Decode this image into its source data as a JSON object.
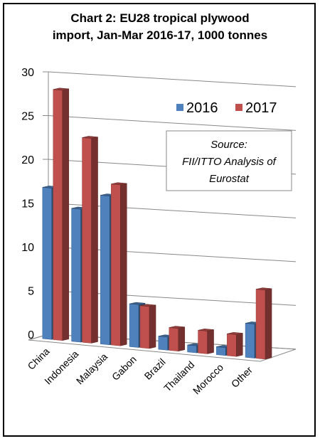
{
  "chart_data": {
    "type": "bar",
    "title_line1": "Chart 2: EU28 tropical plywood",
    "title_line2": "import, Jan-Mar 2016-17, 1000 tonnes",
    "categories": [
      "China",
      "Indonesia",
      "Malaysia",
      "Gabon",
      "Brazil",
      "Thailand",
      "Morocco",
      "Other"
    ],
    "series": [
      {
        "name": "2016",
        "values": [
          17.3,
          15.2,
          17.0,
          4.9,
          1.5,
          0.8,
          0.9,
          3.9
        ],
        "color": "#4F81BD"
      },
      {
        "name": "2017",
        "values": [
          28.6,
          23.4,
          18.4,
          4.8,
          2.6,
          2.6,
          2.5,
          7.9
        ],
        "color": "#C0504D"
      }
    ],
    "ylim": [
      0,
      30
    ],
    "yticks": [
      "0",
      "5",
      "10",
      "15",
      "20",
      "25",
      "30"
    ],
    "grid": true,
    "legend_position": "top-right",
    "annotation": [
      "Source:",
      "FII/ITTO Analysis of",
      "Eurostat"
    ]
  }
}
